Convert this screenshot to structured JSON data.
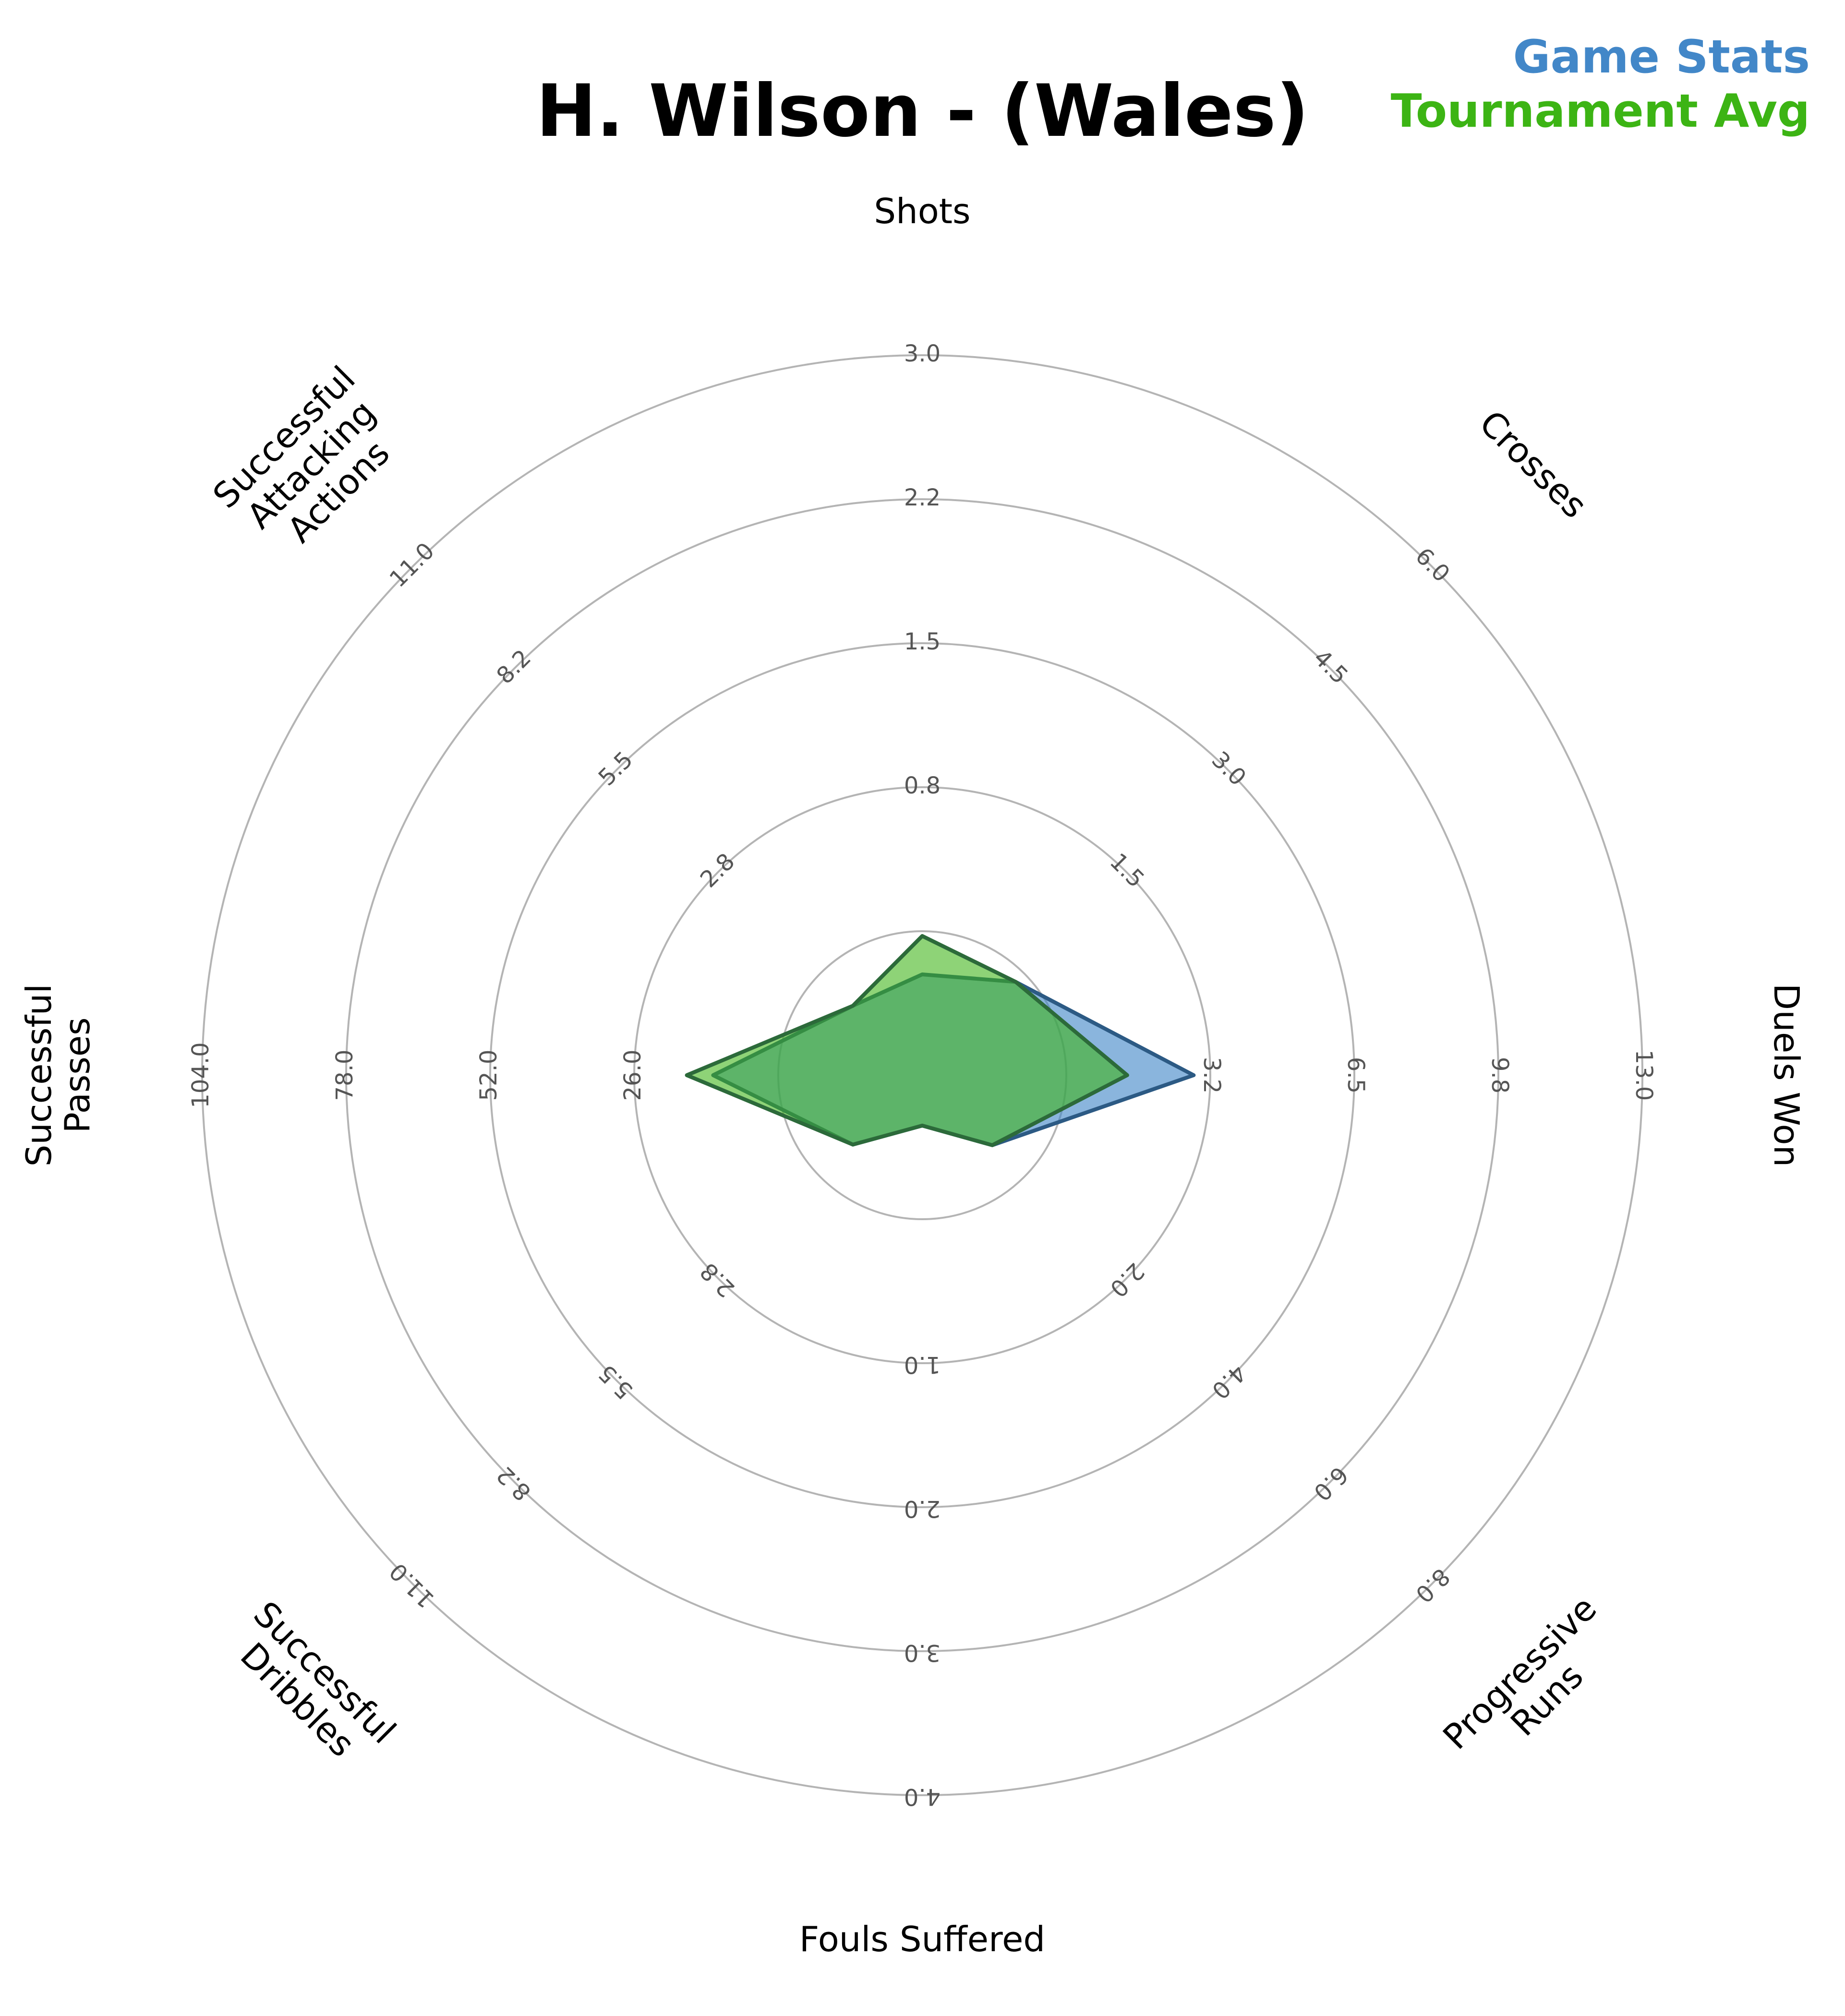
{
  "title": "H. Wilson - (Wales)",
  "legend": {
    "game_label": "Game Stats",
    "game_color": "#4287c8",
    "tournament_label": "Tournament Avg",
    "tournament_color": "#3cb414"
  },
  "chart_data": {
    "type": "radar",
    "title": "H. Wilson - (Wales)",
    "axes": [
      {
        "name": "Shots",
        "lines": [
          "Shots"
        ],
        "max": 3.0,
        "ticks": [
          "0.8",
          "1.5",
          "2.2",
          "3.0"
        ]
      },
      {
        "name": "Crosses",
        "lines": [
          "Crosses"
        ],
        "max": 6.0,
        "ticks": [
          "1.5",
          "3.0",
          "4.5",
          "6.0"
        ]
      },
      {
        "name": "Duels Won",
        "lines": [
          "Duels Won"
        ],
        "max": 13.0,
        "ticks": [
          "3.2",
          "6.5",
          "9.8",
          "13.0"
        ]
      },
      {
        "name": "Progressive Runs",
        "lines": [
          "Progressive",
          "Runs"
        ],
        "max": 8.0,
        "ticks": [
          "2.0",
          "4.0",
          "6.0",
          "8.0"
        ]
      },
      {
        "name": "Fouls Suffered",
        "lines": [
          "Fouls Suffered"
        ],
        "max": 4.0,
        "ticks": [
          "1.0",
          "2.0",
          "3.0",
          "4.0"
        ]
      },
      {
        "name": "Successful Dribbles",
        "lines": [
          "Successful",
          "Dribbles"
        ],
        "max": 11.0,
        "ticks": [
          "2.8",
          "5.5",
          "8.2",
          "11.0"
        ]
      },
      {
        "name": "Successful Passes",
        "lines": [
          "Successful",
          "Passes"
        ],
        "max": 104.0,
        "ticks": [
          "26.0",
          "52.0",
          "78.0",
          "104.0"
        ]
      },
      {
        "name": "Successful Attacking Actions",
        "lines": [
          "Successful",
          "Attacking",
          "Actions"
        ],
        "max": 11.0,
        "ticks": [
          "2.8",
          "5.5",
          "8.2",
          "11.0"
        ]
      }
    ],
    "series": [
      {
        "name": "Game Stats",
        "color": "#4287c8",
        "values": [
          0.42,
          1.1,
          4.9,
          1.1,
          0.28,
          1.5,
          30.2,
          1.5
        ]
      },
      {
        "name": "Tournament Avg",
        "color": "#3cb414",
        "values": [
          0.58,
          1.1,
          3.7,
          1.1,
          0.28,
          1.5,
          34.0,
          1.5
        ]
      }
    ],
    "grid": true,
    "legend_position": "top-right"
  }
}
